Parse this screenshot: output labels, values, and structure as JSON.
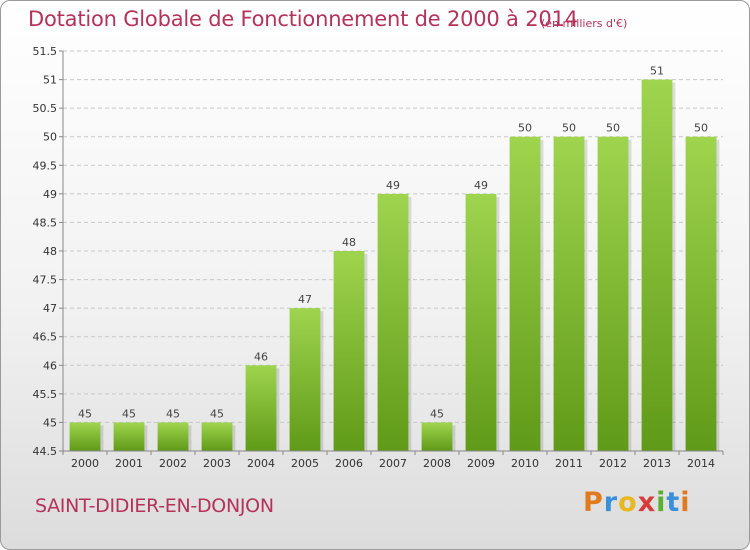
{
  "header": {
    "title": "Dotation Globale de Fonctionnement de 2000 à 2014",
    "subtitle": "(en milliers d'€)"
  },
  "footer": {
    "commune": "SAINT-DIDIER-EN-DONJON",
    "logo_letters": [
      "P",
      "r",
      "o",
      "x",
      "i",
      "t",
      "i"
    ],
    "logo_colors": [
      "#e07a1f",
      "#3a8fd9",
      "#e8b820",
      "#d93a3a",
      "#5ab030",
      "#3a8fd9",
      "#e07a1f"
    ]
  },
  "chart_data": {
    "type": "bar",
    "title": "Dotation Globale de Fonctionnement de 2000 à 2014",
    "categories": [
      "2000",
      "2001",
      "2002",
      "2003",
      "2004",
      "2005",
      "2006",
      "2007",
      "2008",
      "2009",
      "2010",
      "2011",
      "2012",
      "2013",
      "2014"
    ],
    "values": [
      45,
      45,
      45,
      45,
      46,
      47,
      48,
      49,
      45,
      49,
      50,
      50,
      50,
      51,
      50
    ],
    "value_labels": [
      "45",
      "45",
      "45",
      "45",
      "46",
      "47",
      "48",
      "49",
      "45",
      "49",
      "50",
      "50",
      "50",
      "51",
      "50"
    ],
    "ylim": [
      44.5,
      51.5
    ],
    "yticks": [
      "44.5",
      "45",
      "45.5",
      "46",
      "46.5",
      "47",
      "47.5",
      "48",
      "48.5",
      "49",
      "49.5",
      "50",
      "50.5",
      "51",
      "51.5"
    ],
    "grid": true,
    "colors": {
      "bar_light": "#9fd44e",
      "bar_dark": "#5f9a18",
      "grid": "#c8c8c8"
    }
  }
}
